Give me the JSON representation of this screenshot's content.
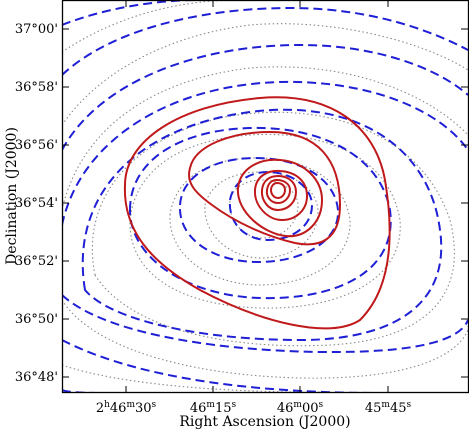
{
  "chart_data": {
    "type": "contour",
    "xlabel": "Right Ascension (J2000)",
    "ylabel": "Declination (J2000)",
    "x_tick_labels": [
      {
        "main": "2",
        "sup1": "h",
        "mid": "46",
        "sup2": "m",
        "end": "30",
        "sup3": "s"
      },
      {
        "main": "",
        "sup1": "",
        "mid": "46",
        "sup2": "m",
        "end": "15",
        "sup3": "s"
      },
      {
        "main": "",
        "sup1": "",
        "mid": "46",
        "sup2": "m",
        "end": "00",
        "sup3": "s"
      },
      {
        "main": "",
        "sup1": "",
        "mid": "45",
        "sup2": "m",
        "end": "45",
        "sup3": "s"
      }
    ],
    "y_tick_labels": [
      "37°00'",
      "36°58'",
      "36°56'",
      "36°54'",
      "36°52'",
      "36°50'",
      "36°48'"
    ],
    "center": {
      "ra": "2h46m03s",
      "dec": "36°54.5'"
    },
    "series": [
      {
        "style": "solid",
        "color": "#c0191b",
        "levels": [
          {
            "rx": 2.55,
            "ry": 0.95,
            "tilt": 0
          },
          {
            "rx": 2.05,
            "ry": 0.75,
            "tilt": 0
          },
          {
            "rx": 1.55,
            "ry": 0.55,
            "tilt": 0
          },
          {
            "rx": 1.05,
            "ry": 0.4,
            "tilt": 0
          },
          {
            "rx": 0.8,
            "ry": 0.28,
            "tilt": 0
          }
        ]
      },
      {
        "style": "dashed",
        "color": "#1f1fd6",
        "levels": [
          {
            "rx": 3.3,
            "ry": 1.3,
            "tilt": 0
          },
          {
            "rx": 2.7,
            "ry": 1.05,
            "tilt": 0
          },
          {
            "rx": 2.1,
            "ry": 0.8,
            "tilt": 0
          }
        ]
      },
      {
        "style": "dotted",
        "color": "#8a8a8a",
        "levels": [
          {
            "rx": 3.8,
            "ry": 1.5,
            "tilt": 0
          },
          {
            "rx": 3.2,
            "ry": 1.25,
            "tilt": 0
          },
          {
            "rx": 2.6,
            "ry": 1.0,
            "tilt": 0
          }
        ]
      }
    ]
  }
}
